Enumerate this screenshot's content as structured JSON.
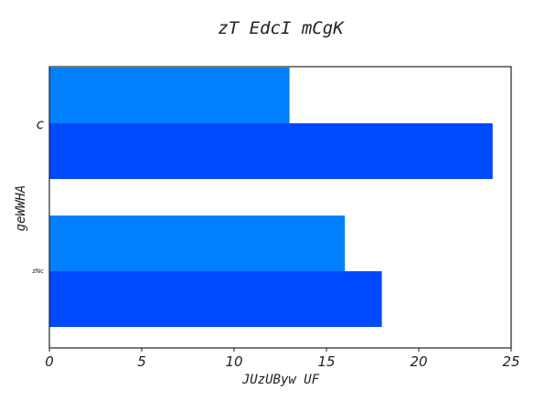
{
  "chart_data": {
    "type": "bar",
    "orientation": "horizontal",
    "title": "zT EdcI mCgK",
    "xlabel": "JUzUByw UF",
    "ylabel": "geWWHA",
    "categories": [
      "c",
      "zNc"
    ],
    "series": [
      {
        "color": "#0080ff",
        "values": [
          13,
          16
        ]
      },
      {
        "color": "#0049ff",
        "values": [
          24,
          18
        ]
      }
    ],
    "xlim": [
      0,
      25
    ],
    "xticks": [
      "0",
      "5",
      "10",
      "15",
      "20",
      "25"
    ],
    "grid": false,
    "legend": "none"
  }
}
